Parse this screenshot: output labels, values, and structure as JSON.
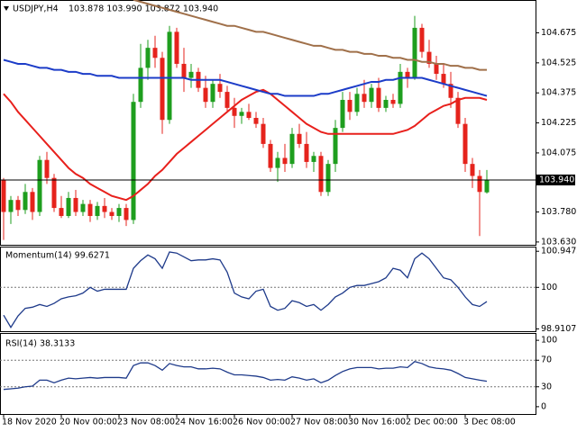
{
  "chart_data": [
    {
      "type": "candlestick",
      "title": "USDJPY,H4",
      "subtitle": "103.878 103.990 103.872 103.940",
      "categories": [
        "18 Nov 2020",
        null,
        null,
        null,
        null,
        null,
        null,
        null,
        "20 Nov 00:00",
        null,
        null,
        null,
        null,
        null,
        null,
        null,
        "23 Nov 08:00",
        null,
        null,
        null,
        null,
        null,
        null,
        null,
        "24 Nov 16:00",
        null,
        null,
        null,
        null,
        null,
        null,
        null,
        "26 Nov 00:00",
        null,
        null,
        null,
        null,
        null,
        null,
        null,
        "27 Nov 08:00",
        null,
        null,
        null,
        null,
        null,
        null,
        null,
        "30 Nov 16:00",
        null,
        null,
        null,
        null,
        null,
        null,
        null,
        "2 Dec 00:00",
        null,
        null,
        null,
        null,
        null,
        null,
        null,
        "3 Dec 08:00",
        null,
        null,
        null
      ],
      "open": [
        103.94,
        103.78,
        103.84,
        103.79,
        103.88,
        103.78,
        104.04,
        103.95,
        103.8,
        103.76,
        103.85,
        103.78,
        103.82,
        103.76,
        103.81,
        103.78,
        103.76,
        103.8,
        103.74,
        104.33,
        104.5,
        104.6,
        104.55,
        104.24,
        104.68,
        104.52,
        104.45,
        104.48,
        104.4,
        104.33,
        104.42,
        104.38,
        104.3,
        104.26,
        104.28,
        104.25,
        104.22,
        104.12,
        104.0,
        104.05,
        104.02,
        104.17,
        104.12,
        104.03,
        104.06,
        103.88,
        104.02,
        104.2,
        104.34,
        104.28,
        104.37,
        104.33,
        104.4,
        104.3,
        104.34,
        104.32,
        104.48,
        104.45,
        104.7,
        104.58,
        104.52,
        104.47,
        104.42,
        104.35,
        104.22,
        104.02,
        103.96,
        103.878
      ],
      "high": [
        103.95,
        103.86,
        103.86,
        103.92,
        103.9,
        104.06,
        104.08,
        103.97,
        103.86,
        103.88,
        103.89,
        103.84,
        103.84,
        103.83,
        103.85,
        103.8,
        103.82,
        103.82,
        104.37,
        104.62,
        104.64,
        104.66,
        104.58,
        104.71,
        104.7,
        104.6,
        104.52,
        104.5,
        104.46,
        104.44,
        104.47,
        104.41,
        104.35,
        104.3,
        104.32,
        104.28,
        104.25,
        104.14,
        104.08,
        104.12,
        104.2,
        104.22,
        104.18,
        104.08,
        104.08,
        104.04,
        104.24,
        104.38,
        104.38,
        104.4,
        104.44,
        104.42,
        104.45,
        104.36,
        104.37,
        104.52,
        104.5,
        104.76,
        104.72,
        104.64,
        104.56,
        104.52,
        104.48,
        104.38,
        104.25,
        104.05,
        103.99,
        103.99
      ],
      "low": [
        103.64,
        103.72,
        103.76,
        103.77,
        103.74,
        103.76,
        103.92,
        103.78,
        103.75,
        103.75,
        103.76,
        103.76,
        103.73,
        103.74,
        103.75,
        103.74,
        103.73,
        103.71,
        103.72,
        104.3,
        104.44,
        104.5,
        104.17,
        104.22,
        104.5,
        104.38,
        104.4,
        104.38,
        104.3,
        104.3,
        104.35,
        104.28,
        104.2,
        104.22,
        104.24,
        104.2,
        104.1,
        103.98,
        103.93,
        103.98,
        104.0,
        104.1,
        104.0,
        103.98,
        103.86,
        103.86,
        103.98,
        104.18,
        104.24,
        104.26,
        104.3,
        104.3,
        104.28,
        104.28,
        104.3,
        104.3,
        104.4,
        104.44,
        104.55,
        104.5,
        104.44,
        104.4,
        104.3,
        104.2,
        103.98,
        103.9,
        103.66,
        103.872
      ],
      "close": [
        103.78,
        103.84,
        103.79,
        103.88,
        103.78,
        104.04,
        103.95,
        103.8,
        103.76,
        103.85,
        103.78,
        103.82,
        103.76,
        103.81,
        103.78,
        103.76,
        103.8,
        103.74,
        104.33,
        104.5,
        104.6,
        104.55,
        104.24,
        104.68,
        104.52,
        104.45,
        104.48,
        104.4,
        104.33,
        104.42,
        104.38,
        104.3,
        104.26,
        104.28,
        104.25,
        104.22,
        104.12,
        104.0,
        104.05,
        104.02,
        104.17,
        104.12,
        104.03,
        104.06,
        103.88,
        104.02,
        104.2,
        104.34,
        104.28,
        104.37,
        104.33,
        104.4,
        104.3,
        104.34,
        104.32,
        104.48,
        104.45,
        104.7,
        104.58,
        104.52,
        104.47,
        104.42,
        104.35,
        104.22,
        104.02,
        103.96,
        103.88,
        103.94
      ],
      "up_color": "#1e9e1e",
      "down_color": "#e5231c",
      "series": [
        {
          "color": "#e8201c",
          "values": [
            104.37,
            104.33,
            104.28,
            104.24,
            104.2,
            104.16,
            104.12,
            104.08,
            104.04,
            104.0,
            103.97,
            103.95,
            103.92,
            103.9,
            103.88,
            103.86,
            103.85,
            103.84,
            103.86,
            103.89,
            103.92,
            103.96,
            103.99,
            104.03,
            104.07,
            104.1,
            104.13,
            104.16,
            104.19,
            104.22,
            104.25,
            104.28,
            104.31,
            104.34,
            104.36,
            104.38,
            104.39,
            104.37,
            104.34,
            104.31,
            104.28,
            104.25,
            104.22,
            104.2,
            104.18,
            104.17,
            104.17,
            104.17,
            104.17,
            104.17,
            104.17,
            104.17,
            104.17,
            104.17,
            104.17,
            104.18,
            104.19,
            104.21,
            104.24,
            104.27,
            104.29,
            104.31,
            104.32,
            104.34,
            104.35,
            104.35,
            104.35,
            104.34
          ]
        },
        {
          "color": "#1c3cc8",
          "values": [
            104.54,
            104.53,
            104.52,
            104.52,
            104.51,
            104.5,
            104.5,
            104.49,
            104.49,
            104.48,
            104.48,
            104.47,
            104.47,
            104.46,
            104.46,
            104.46,
            104.45,
            104.45,
            104.45,
            104.45,
            104.45,
            104.45,
            104.45,
            104.45,
            104.45,
            104.45,
            104.44,
            104.44,
            104.44,
            104.44,
            104.44,
            104.43,
            104.42,
            104.41,
            104.4,
            104.39,
            104.38,
            104.37,
            104.37,
            104.36,
            104.36,
            104.36,
            104.36,
            104.36,
            104.37,
            104.37,
            104.38,
            104.39,
            104.4,
            104.41,
            104.42,
            104.43,
            104.43,
            104.44,
            104.44,
            104.45,
            104.45,
            104.45,
            104.45,
            104.44,
            104.43,
            104.42,
            104.41,
            104.4,
            104.39,
            104.38,
            104.37,
            104.36
          ]
        },
        {
          "color": "#a0704a",
          "values": [
            null,
            null,
            null,
            null,
            null,
            null,
            null,
            null,
            null,
            null,
            null,
            null,
            null,
            null,
            null,
            null,
            null,
            null,
            104.84,
            104.83,
            104.82,
            104.81,
            104.8,
            104.79,
            104.78,
            104.77,
            104.76,
            104.75,
            104.74,
            104.73,
            104.72,
            104.71,
            104.71,
            104.7,
            104.69,
            104.68,
            104.68,
            104.67,
            104.66,
            104.65,
            104.64,
            104.63,
            104.62,
            104.61,
            104.61,
            104.6,
            104.59,
            104.59,
            104.58,
            104.58,
            104.57,
            104.57,
            104.56,
            104.56,
            104.55,
            104.55,
            104.54,
            104.54,
            104.53,
            104.53,
            104.52,
            104.52,
            104.51,
            104.51,
            104.5,
            104.5,
            104.49,
            104.49
          ]
        }
      ],
      "ylim": [
        103.616,
        104.839
      ],
      "yticks": [
        104.675,
        104.525,
        104.375,
        104.225,
        104.075,
        {
          "value": 103.78,
          "label": "103.780"
        },
        {
          "value": 103.63,
          "label": "103.630"
        }
      ],
      "current_price": {
        "value": 103.94,
        "label": "103.940"
      }
    },
    {
      "type": "line",
      "title": "Momentum(14) 99.6271",
      "color": "#1e3a8a",
      "values": [
        99.27,
        98.95,
        99.25,
        99.45,
        99.48,
        99.55,
        99.5,
        99.58,
        99.7,
        99.75,
        99.78,
        99.85,
        100.0,
        99.9,
        99.95,
        99.95,
        99.95,
        99.95,
        100.5,
        100.7,
        100.85,
        100.75,
        100.5,
        100.93,
        100.9,
        100.8,
        100.7,
        100.72,
        100.72,
        100.75,
        100.72,
        100.4,
        99.85,
        99.75,
        99.7,
        99.9,
        99.95,
        99.5,
        99.4,
        99.45,
        99.65,
        99.6,
        99.5,
        99.55,
        99.4,
        99.55,
        99.75,
        99.85,
        100.0,
        100.05,
        100.05,
        100.1,
        100.15,
        100.25,
        100.5,
        100.45,
        100.25,
        100.75,
        100.9,
        100.75,
        100.5,
        100.25,
        100.2,
        100.0,
        99.75,
        99.55,
        99.5,
        99.6271
      ],
      "ylim": [
        98.85,
        101.07
      ],
      "yticks": [
        100.9472,
        100,
        98.9107
      ],
      "levels": [
        100
      ]
    },
    {
      "type": "line",
      "title": "RSI(14) 38.3133",
      "color": "#1e3a8a",
      "values": [
        26,
        27,
        28,
        30,
        31,
        40,
        40,
        36,
        40,
        43,
        42,
        43,
        44,
        43,
        44,
        44,
        44,
        43,
        62,
        66,
        66,
        62,
        55,
        65,
        62,
        60,
        60,
        57,
        57,
        58,
        57,
        52,
        48,
        48,
        47,
        46,
        44,
        40,
        41,
        40,
        45,
        43,
        40,
        42,
        36,
        40,
        47,
        53,
        57,
        59,
        59,
        59,
        57,
        58,
        58,
        60,
        59,
        68,
        65,
        60,
        58,
        57,
        55,
        50,
        44,
        42,
        40,
        38.3133
      ],
      "ylim": [
        -11,
        111
      ],
      "yticks": [
        100,
        70,
        30,
        0
      ],
      "levels": [
        70,
        30
      ]
    }
  ]
}
